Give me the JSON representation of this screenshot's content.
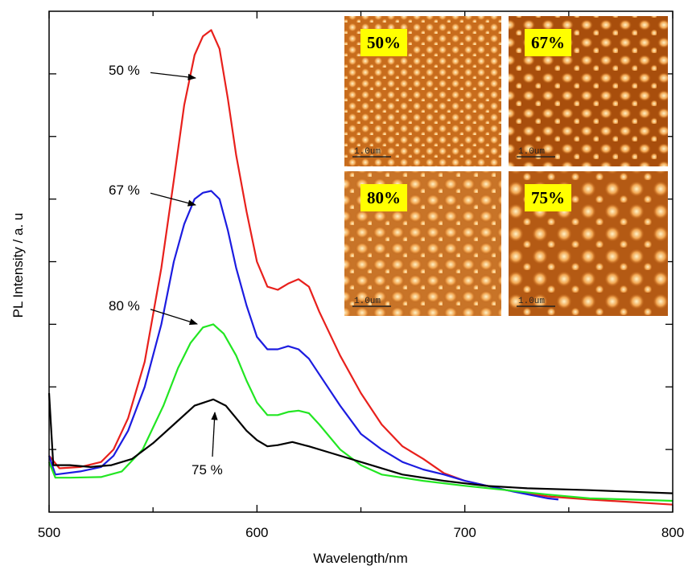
{
  "chart_data": {
    "type": "line",
    "x_label": "Wavelength/nm",
    "y_label": "PL Intensity / a. u",
    "xlim": [
      500,
      800
    ],
    "xticks": [
      500,
      600,
      700,
      800
    ],
    "xticks_minor": [
      550,
      650,
      750
    ],
    "ylim": [
      0,
      8
    ],
    "yticks": [
      1,
      2,
      3,
      4,
      5,
      6,
      7
    ],
    "series": [
      {
        "name": "50 %",
        "color": "#e8201c",
        "x": [
          500,
          505,
          515,
          525,
          531,
          538,
          546,
          554,
          560,
          565,
          570,
          574,
          578,
          582,
          586,
          590,
          595,
          600,
          605,
          610,
          615,
          620,
          625,
          630,
          640,
          650,
          660,
          670,
          680,
          690,
          700,
          720,
          740,
          760,
          780,
          800
        ],
        "values": [
          0.9,
          0.7,
          0.72,
          0.8,
          1.0,
          1.5,
          2.4,
          3.9,
          5.3,
          6.5,
          7.3,
          7.6,
          7.7,
          7.4,
          6.6,
          5.7,
          4.8,
          4.0,
          3.6,
          3.55,
          3.65,
          3.72,
          3.6,
          3.2,
          2.5,
          1.9,
          1.4,
          1.05,
          0.85,
          0.62,
          0.5,
          0.35,
          0.25,
          0.2,
          0.16,
          0.12
        ]
      },
      {
        "name": "67 %",
        "color": "#1c1ce0",
        "x": [
          500,
          503,
          515,
          525,
          531,
          538,
          546,
          554,
          560,
          565,
          570,
          574,
          578,
          582,
          586,
          590,
          595,
          600,
          605,
          610,
          615,
          620,
          625,
          630,
          640,
          650,
          660,
          670,
          680,
          690,
          700,
          720,
          740,
          745
        ],
        "values": [
          0.9,
          0.6,
          0.65,
          0.72,
          0.9,
          1.3,
          2.0,
          3.0,
          4.0,
          4.6,
          5.0,
          5.1,
          5.13,
          5.0,
          4.5,
          3.9,
          3.3,
          2.8,
          2.6,
          2.6,
          2.65,
          2.6,
          2.45,
          2.2,
          1.7,
          1.25,
          1.0,
          0.8,
          0.68,
          0.6,
          0.5,
          0.35,
          0.22,
          0.2
        ]
      },
      {
        "name": "80 %",
        "color": "#22e622",
        "x": [
          500,
          503,
          510,
          525,
          535,
          545,
          555,
          562,
          568,
          574,
          579,
          584,
          590,
          595,
          600,
          605,
          610,
          615,
          620,
          625,
          630,
          640,
          650,
          660,
          680,
          700,
          720,
          740,
          760,
          780,
          800
        ],
        "values": [
          0.8,
          0.55,
          0.55,
          0.56,
          0.65,
          1.0,
          1.7,
          2.3,
          2.7,
          2.95,
          3.0,
          2.85,
          2.5,
          2.1,
          1.75,
          1.55,
          1.55,
          1.6,
          1.62,
          1.58,
          1.4,
          1.0,
          0.75,
          0.6,
          0.5,
          0.42,
          0.35,
          0.28,
          0.22,
          0.2,
          0.18
        ]
      },
      {
        "name": "75 %",
        "color": "#000000",
        "x": [
          500,
          502,
          510,
          520,
          530,
          540,
          550,
          560,
          570,
          579,
          585,
          590,
          595,
          600,
          605,
          610,
          617,
          625,
          635,
          650,
          670,
          690,
          710,
          730,
          760,
          800
        ],
        "values": [
          1.9,
          0.75,
          0.75,
          0.72,
          0.75,
          0.85,
          1.1,
          1.4,
          1.7,
          1.8,
          1.7,
          1.5,
          1.3,
          1.15,
          1.05,
          1.07,
          1.12,
          1.05,
          0.95,
          0.8,
          0.6,
          0.5,
          0.42,
          0.38,
          0.35,
          0.3
        ]
      }
    ],
    "insets": [
      {
        "label": "50%",
        "scale": "1.0um"
      },
      {
        "label": "67%",
        "scale": "1.0um"
      },
      {
        "label": "80%",
        "scale": "1.0um"
      },
      {
        "label": "75%",
        "scale": "1.0um"
      }
    ]
  }
}
